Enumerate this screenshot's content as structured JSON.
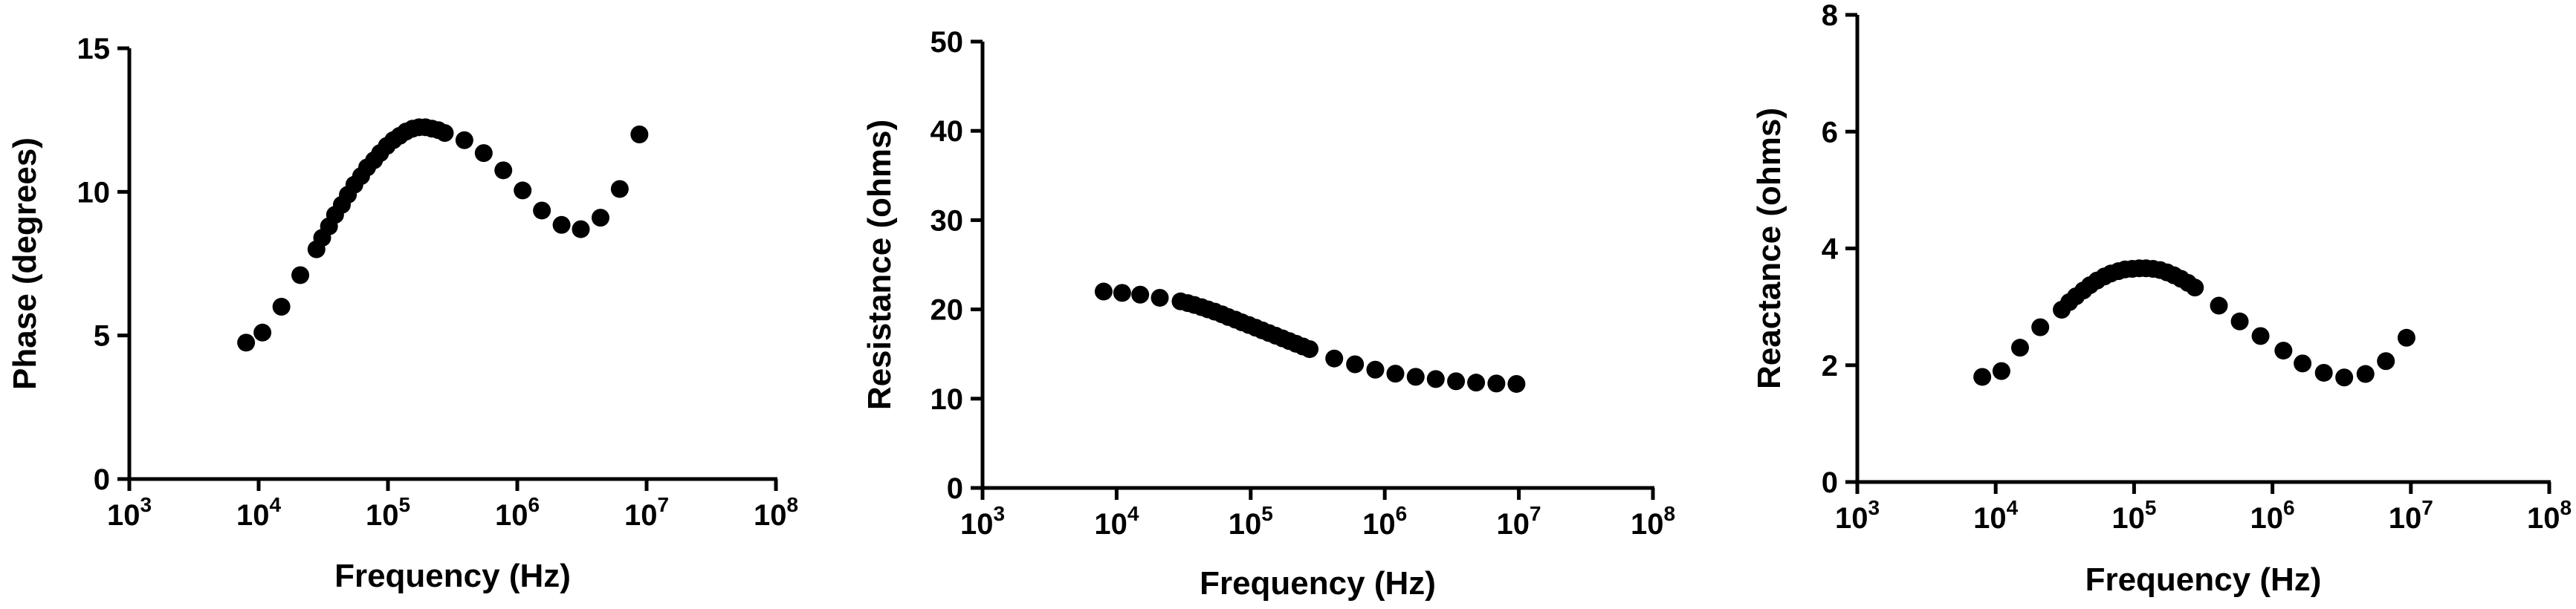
{
  "chart_data": [
    {
      "type": "scatter",
      "xlabel": "Frequency (Hz)",
      "ylabel": "Phase (degrees)",
      "xscale": "log",
      "xlim": [
        1000,
        100000000
      ],
      "ylim": [
        0,
        15
      ],
      "x_ticks": [
        1000,
        10000,
        100000,
        1000000,
        10000000,
        100000000
      ],
      "x_tick_labels": [
        {
          "base": "10",
          "exp": "3"
        },
        {
          "base": "10",
          "exp": "4"
        },
        {
          "base": "10",
          "exp": "5"
        },
        {
          "base": "10",
          "exp": "6"
        },
        {
          "base": "10",
          "exp": "7"
        },
        {
          "base": "10",
          "exp": "8"
        }
      ],
      "y_ticks": [
        0,
        5,
        10,
        15
      ],
      "y_tick_labels": [
        "0",
        "5",
        "10",
        "15"
      ],
      "grid": false,
      "points": [
        {
          "x": 8000,
          "y": 4.75
        },
        {
          "x": 10700,
          "y": 5.1
        },
        {
          "x": 15000,
          "y": 6.0
        },
        {
          "x": 21000,
          "y": 7.1
        },
        {
          "x": 28000,
          "y": 8.0
        },
        {
          "x": 31000,
          "y": 8.4
        },
        {
          "x": 35000,
          "y": 8.8
        },
        {
          "x": 39000,
          "y": 9.2
        },
        {
          "x": 44000,
          "y": 9.55
        },
        {
          "x": 49000,
          "y": 9.9
        },
        {
          "x": 55000,
          "y": 10.25
        },
        {
          "x": 62000,
          "y": 10.55
        },
        {
          "x": 69000,
          "y": 10.85
        },
        {
          "x": 78000,
          "y": 11.1
        },
        {
          "x": 87000,
          "y": 11.35
        },
        {
          "x": 98000,
          "y": 11.6
        },
        {
          "x": 110000,
          "y": 11.8
        },
        {
          "x": 123000,
          "y": 11.95
        },
        {
          "x": 138000,
          "y": 12.1
        },
        {
          "x": 155000,
          "y": 12.2
        },
        {
          "x": 174000,
          "y": 12.25
        },
        {
          "x": 195000,
          "y": 12.25
        },
        {
          "x": 219000,
          "y": 12.2
        },
        {
          "x": 245000,
          "y": 12.15
        },
        {
          "x": 275000,
          "y": 12.05
        },
        {
          "x": 390000,
          "y": 11.8
        },
        {
          "x": 550000,
          "y": 11.35
        },
        {
          "x": 780000,
          "y": 10.75
        },
        {
          "x": 1100000,
          "y": 10.05
        },
        {
          "x": 1550000,
          "y": 9.35
        },
        {
          "x": 2200000,
          "y": 8.85
        },
        {
          "x": 3100000,
          "y": 8.7
        },
        {
          "x": 4400000,
          "y": 9.1
        },
        {
          "x": 6200000,
          "y": 10.1
        },
        {
          "x": 8800000,
          "y": 12.0
        }
      ]
    },
    {
      "type": "scatter",
      "xlabel": "Frequency (Hz)",
      "ylabel": "Resistance (ohms)",
      "xscale": "log",
      "xlim": [
        1000,
        100000000
      ],
      "ylim": [
        0,
        50
      ],
      "x_ticks": [
        1000,
        10000,
        100000,
        1000000,
        10000000,
        100000000
      ],
      "x_tick_labels": [
        {
          "base": "10",
          "exp": "3"
        },
        {
          "base": "10",
          "exp": "4"
        },
        {
          "base": "10",
          "exp": "5"
        },
        {
          "base": "10",
          "exp": "6"
        },
        {
          "base": "10",
          "exp": "7"
        },
        {
          "base": "10",
          "exp": "8"
        }
      ],
      "y_ticks": [
        0,
        10,
        20,
        30,
        40,
        50
      ],
      "y_tick_labels": [
        "0",
        "10",
        "20",
        "30",
        "40",
        "50"
      ],
      "grid": false,
      "points": [
        {
          "x": 8000,
          "y": 22.0
        },
        {
          "x": 11000,
          "y": 21.85
        },
        {
          "x": 15000,
          "y": 21.65
        },
        {
          "x": 21000,
          "y": 21.3
        },
        {
          "x": 30000,
          "y": 20.9
        },
        {
          "x": 34000,
          "y": 20.7
        },
        {
          "x": 38000,
          "y": 20.5
        },
        {
          "x": 43000,
          "y": 20.25
        },
        {
          "x": 48000,
          "y": 20.0
        },
        {
          "x": 54000,
          "y": 19.75
        },
        {
          "x": 61000,
          "y": 19.45
        },
        {
          "x": 68000,
          "y": 19.15
        },
        {
          "x": 77000,
          "y": 18.85
        },
        {
          "x": 86000,
          "y": 18.55
        },
        {
          "x": 97000,
          "y": 18.25
        },
        {
          "x": 109000,
          "y": 17.95
        },
        {
          "x": 122000,
          "y": 17.65
        },
        {
          "x": 137000,
          "y": 17.35
        },
        {
          "x": 154000,
          "y": 17.05
        },
        {
          "x": 173000,
          "y": 16.75
        },
        {
          "x": 194000,
          "y": 16.45
        },
        {
          "x": 218000,
          "y": 16.15
        },
        {
          "x": 245000,
          "y": 15.85
        },
        {
          "x": 275000,
          "y": 15.55
        },
        {
          "x": 420000,
          "y": 14.5
        },
        {
          "x": 600000,
          "y": 13.85
        },
        {
          "x": 850000,
          "y": 13.25
        },
        {
          "x": 1200000,
          "y": 12.8
        },
        {
          "x": 1700000,
          "y": 12.45
        },
        {
          "x": 2400000,
          "y": 12.2
        },
        {
          "x": 3400000,
          "y": 11.95
        },
        {
          "x": 4800000,
          "y": 11.8
        },
        {
          "x": 6800000,
          "y": 11.7
        },
        {
          "x": 9600000,
          "y": 11.65
        }
      ]
    },
    {
      "type": "scatter",
      "xlabel": "Frequency (Hz)",
      "ylabel": "Reactance (ohms)",
      "xscale": "log",
      "xlim": [
        1000,
        100000000
      ],
      "ylim": [
        0,
        8
      ],
      "x_ticks": [
        1000,
        10000,
        100000,
        1000000,
        10000000,
        100000000
      ],
      "x_tick_labels": [
        {
          "base": "10",
          "exp": "3"
        },
        {
          "base": "10",
          "exp": "4"
        },
        {
          "base": "10",
          "exp": "5"
        },
        {
          "base": "10",
          "exp": "6"
        },
        {
          "base": "10",
          "exp": "7"
        },
        {
          "base": "10",
          "exp": "8"
        }
      ],
      "y_ticks": [
        0,
        2,
        4,
        6,
        8
      ],
      "y_tick_labels": [
        "0",
        "2",
        "4",
        "6",
        "8"
      ],
      "grid": false,
      "points": [
        {
          "x": 8000,
          "y": 1.8
        },
        {
          "x": 11000,
          "y": 1.9
        },
        {
          "x": 15000,
          "y": 2.3
        },
        {
          "x": 21000,
          "y": 2.65
        },
        {
          "x": 30000,
          "y": 2.95
        },
        {
          "x": 34000,
          "y": 3.08
        },
        {
          "x": 38000,
          "y": 3.18
        },
        {
          "x": 43000,
          "y": 3.28
        },
        {
          "x": 48000,
          "y": 3.37
        },
        {
          "x": 54000,
          "y": 3.45
        },
        {
          "x": 61000,
          "y": 3.52
        },
        {
          "x": 68000,
          "y": 3.57
        },
        {
          "x": 77000,
          "y": 3.61
        },
        {
          "x": 86000,
          "y": 3.64
        },
        {
          "x": 97000,
          "y": 3.65
        },
        {
          "x": 109000,
          "y": 3.66
        },
        {
          "x": 122000,
          "y": 3.66
        },
        {
          "x": 137000,
          "y": 3.65
        },
        {
          "x": 154000,
          "y": 3.63
        },
        {
          "x": 173000,
          "y": 3.59
        },
        {
          "x": 194000,
          "y": 3.54
        },
        {
          "x": 218000,
          "y": 3.48
        },
        {
          "x": 245000,
          "y": 3.41
        },
        {
          "x": 275000,
          "y": 3.33
        },
        {
          "x": 410000,
          "y": 3.02
        },
        {
          "x": 580000,
          "y": 2.75
        },
        {
          "x": 820000,
          "y": 2.5
        },
        {
          "x": 1200000,
          "y": 2.25
        },
        {
          "x": 1650000,
          "y": 2.03
        },
        {
          "x": 2350000,
          "y": 1.87
        },
        {
          "x": 3300000,
          "y": 1.79
        },
        {
          "x": 4700000,
          "y": 1.85
        },
        {
          "x": 6600000,
          "y": 2.07
        },
        {
          "x": 9300000,
          "y": 2.47
        }
      ]
    }
  ]
}
